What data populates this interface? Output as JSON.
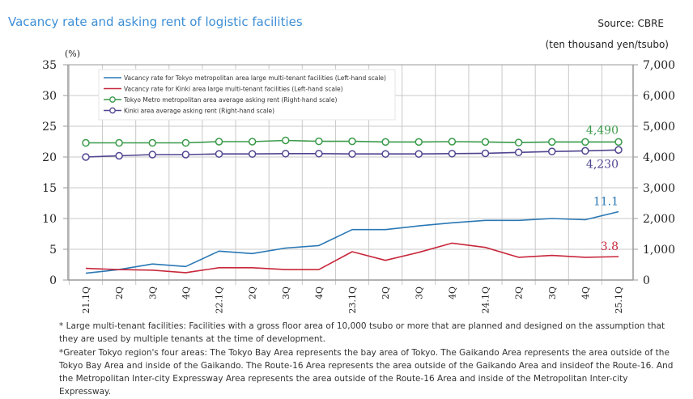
{
  "header": {
    "title": "Vacancy rate and asking rent of logistic facilities",
    "source": "Source: CBRE",
    "right_unit": "(ten thousand yen/tsubo)"
  },
  "colors": {
    "tokyo_vacancy": "#2a78b5",
    "kinki_vacancy": "#c8283c",
    "tokyo_rent": "#3a9a4a",
    "kinki_rent": "#4f4590",
    "grid": "#c8c8c8",
    "axis": "#999999"
  },
  "chart_data": {
    "type": "line",
    "title": "Vacancy rate and asking rent of logistic facilities",
    "ylabel": "(%)",
    "y2label": "(ten thousand yen/tsubo)",
    "ylim": [
      0,
      35
    ],
    "y2lim": [
      0,
      7000
    ],
    "yticks": [
      "0",
      "5",
      "10",
      "15",
      "20",
      "25",
      "30",
      "35"
    ],
    "y2ticks": [
      "0",
      "1,000",
      "2,000",
      "3,000",
      "4,000",
      "5,000",
      "6,000",
      "7,000"
    ],
    "grid": true,
    "legend_position": "top-left",
    "categories": [
      "21.1Q",
      "2Q",
      "3Q",
      "4Q",
      "22.1Q",
      "2Q",
      "3Q",
      "4Q",
      "23.1Q",
      "2Q",
      "3Q",
      "4Q",
      "24.1Q",
      "2Q",
      "3Q",
      "4Q",
      "25.1Q"
    ],
    "series": [
      {
        "key": "tokyo_vacancy",
        "name": "Vacancy rate for Tokyo metropolitan area large multi-tenant facilities (Left-hand scale)",
        "axis": "left",
        "marker": false,
        "values": [
          1.1,
          1.7,
          2.6,
          2.2,
          4.7,
          4.3,
          5.2,
          5.6,
          8.2,
          8.2,
          8.8,
          9.3,
          9.7,
          9.7,
          10.0,
          9.8,
          11.1
        ],
        "end_label": "11.1"
      },
      {
        "key": "kinki_vacancy",
        "name": "Vacancy rate for Kinki area large multi-tenant facilities (Left-hand scale)",
        "axis": "left",
        "marker": false,
        "values": [
          1.9,
          1.7,
          1.6,
          1.2,
          2.0,
          2.0,
          1.7,
          1.7,
          4.6,
          3.2,
          4.5,
          6.0,
          5.3,
          3.7,
          4.0,
          3.7,
          3.8
        ],
        "end_label": "3.8"
      },
      {
        "key": "tokyo_rent",
        "name": "Tokyo Metro metropolitan area average asking rent (Right-hand scale)",
        "axis": "right",
        "marker": true,
        "values": [
          4460,
          4460,
          4460,
          4460,
          4500,
          4500,
          4540,
          4510,
          4510,
          4490,
          4490,
          4500,
          4490,
          4470,
          4490,
          4490,
          4490
        ],
        "end_label": "4,490"
      },
      {
        "key": "kinki_rent",
        "name": "Kinki area average asking rent (Right-hand scale)",
        "axis": "right",
        "marker": true,
        "values": [
          4000,
          4040,
          4080,
          4080,
          4100,
          4100,
          4110,
          4110,
          4100,
          4100,
          4100,
          4110,
          4120,
          4150,
          4180,
          4200,
          4230
        ],
        "end_label": "4,230"
      }
    ]
  },
  "notes": [
    "* Large multi-tenant facilities: Facilities with a gross floor area of 10,000 tsubo or more that are planned and designed on the assumption that they are used by multiple tenants at the time of development.",
    "*Greater Tokyo region's four areas: The Tokyo Bay Area represents the bay area of Tokyo. The Gaikando Area represents the area outside of the Tokyo Bay Area and inside of the Gaikando. The Route-16 Area represents the area outside of the Gaikando Area and insideof the Route-16. And the Metropolitan Inter-city Expressway Area represents the area outside of the Route-16 Area and inside of the Metropolitan Inter-city Expressway."
  ]
}
